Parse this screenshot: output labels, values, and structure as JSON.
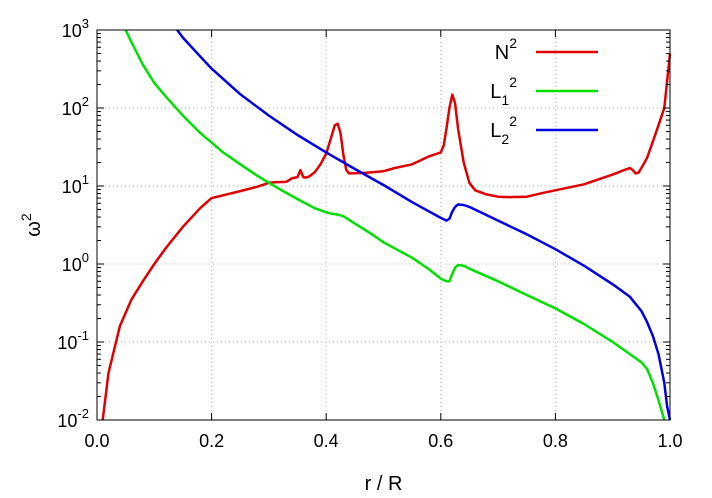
{
  "chart_data": {
    "type": "line",
    "xlabel": "r / R",
    "ylabel": "ω",
    "ylabel_sup": "2",
    "xlim": [
      0.0,
      1.0
    ],
    "ylim": [
      0.01,
      1000
    ],
    "yscale": "log",
    "grid": true,
    "legend_position": "top-right",
    "x_ticks": [
      "0.0",
      "0.2",
      "0.4",
      "0.6",
      "0.8",
      "1.0"
    ],
    "y_ticks": [
      {
        "base": "10",
        "exp": "3"
      },
      {
        "base": "10",
        "exp": "2"
      },
      {
        "base": "10",
        "exp": "1"
      },
      {
        "base": "10",
        "exp": "0"
      },
      {
        "base": "10",
        "exp": "-1"
      },
      {
        "base": "10",
        "exp": "-2"
      }
    ],
    "series": [
      {
        "name": "N",
        "name_sup": "2",
        "color": "#e00000",
        "x": [
          0.01,
          0.02,
          0.04,
          0.06,
          0.08,
          0.1,
          0.12,
          0.15,
          0.18,
          0.2,
          0.22,
          0.25,
          0.28,
          0.3,
          0.31,
          0.33,
          0.34,
          0.35,
          0.355,
          0.36,
          0.365,
          0.37,
          0.38,
          0.39,
          0.4,
          0.41,
          0.415,
          0.42,
          0.425,
          0.43,
          0.435,
          0.44,
          0.45,
          0.47,
          0.5,
          0.52,
          0.55,
          0.58,
          0.6,
          0.605,
          0.61,
          0.615,
          0.62,
          0.625,
          0.63,
          0.64,
          0.65,
          0.66,
          0.68,
          0.7,
          0.72,
          0.75,
          0.78,
          0.8,
          0.85,
          0.88,
          0.9,
          0.92,
          0.93,
          0.935,
          0.94,
          0.945,
          0.95,
          0.96,
          0.97,
          0.98,
          0.99,
          1.0
        ],
        "y": [
          0.01,
          0.04,
          0.16,
          0.35,
          0.6,
          1.0,
          1.6,
          3.0,
          5.2,
          7.0,
          7.6,
          8.6,
          9.8,
          11,
          11.2,
          11.3,
          12.5,
          13,
          16,
          13,
          12.8,
          13.2,
          15,
          19,
          26,
          45,
          60,
          63,
          48,
          25,
          16,
          14.5,
          14.6,
          14.8,
          15.5,
          17,
          19,
          24,
          27,
          33,
          55,
          100,
          148,
          115,
          55,
          20,
          11,
          8.8,
          7.8,
          7.3,
          7.2,
          7.3,
          8.2,
          8.8,
          10.5,
          12.5,
          14,
          16,
          17,
          16,
          14.5,
          14.8,
          17,
          23,
          37,
          60,
          100,
          500
        ]
      },
      {
        "name": "L",
        "name_sub": "1",
        "name_sup": "2",
        "color": "#00e000",
        "x": [
          0.05,
          0.06,
          0.08,
          0.1,
          0.12,
          0.15,
          0.18,
          0.2,
          0.22,
          0.25,
          0.28,
          0.3,
          0.32,
          0.35,
          0.38,
          0.4,
          0.41,
          0.42,
          0.43,
          0.45,
          0.48,
          0.5,
          0.55,
          0.58,
          0.6,
          0.61,
          0.615,
          0.62,
          0.625,
          0.63,
          0.64,
          0.65,
          0.7,
          0.75,
          0.8,
          0.85,
          0.9,
          0.93,
          0.95,
          0.96,
          0.97,
          0.98,
          0.99
        ],
        "y": [
          1000,
          700,
          360,
          210,
          140,
          80,
          48,
          36,
          27,
          19,
          13.5,
          11,
          9,
          6.8,
          5.2,
          4.6,
          4.4,
          4.3,
          4.1,
          3.3,
          2.4,
          1.9,
          1.2,
          0.85,
          0.65,
          0.6,
          0.6,
          0.75,
          0.9,
          0.97,
          0.95,
          0.87,
          0.6,
          0.4,
          0.27,
          0.17,
          0.1,
          0.07,
          0.055,
          0.045,
          0.03,
          0.018,
          0.01
        ]
      },
      {
        "name": "L",
        "name_sub": "2",
        "name_sup": "2",
        "color": "#0000e0",
        "x": [
          0.14,
          0.15,
          0.18,
          0.2,
          0.25,
          0.3,
          0.35,
          0.4,
          0.45,
          0.5,
          0.55,
          0.6,
          0.61,
          0.615,
          0.62,
          0.625,
          0.63,
          0.64,
          0.65,
          0.7,
          0.75,
          0.8,
          0.85,
          0.9,
          0.93,
          0.95,
          0.96,
          0.97,
          0.98,
          0.99,
          0.995,
          1.0
        ],
        "y": [
          1000,
          800,
          460,
          320,
          150,
          80,
          45,
          27,
          16.5,
          10.3,
          6.2,
          3.9,
          3.6,
          3.8,
          4.7,
          5.4,
          5.8,
          5.7,
          5.4,
          3.6,
          2.4,
          1.55,
          0.95,
          0.55,
          0.38,
          0.25,
          0.18,
          0.12,
          0.07,
          0.03,
          0.015,
          0.01
        ]
      }
    ]
  }
}
